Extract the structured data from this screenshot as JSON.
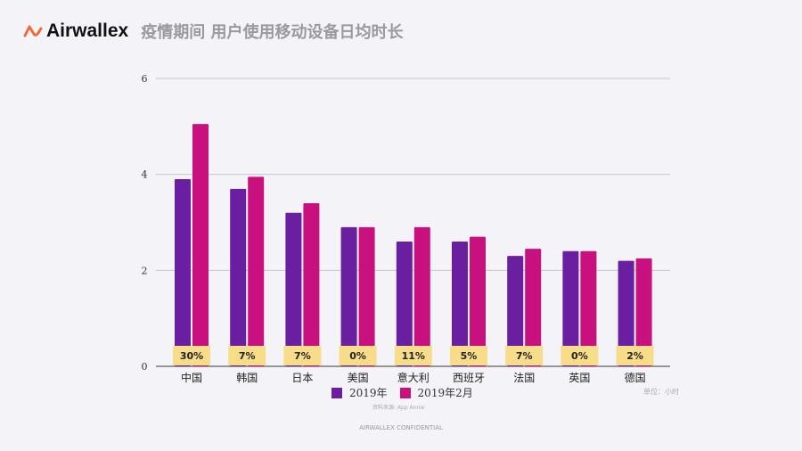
{
  "header": {
    "brand": "Airwallex",
    "title": "疫情期间 用户使用移动设备日均时长"
  },
  "colors": {
    "series_2019": "#6a1fa0",
    "series_2019_feb": "#c8117f",
    "pct_box": "#f7dc8a",
    "brand": "#f06a3c"
  },
  "chart_data": {
    "type": "bar",
    "title": "疫情期间 用户使用移动设备日均时长",
    "categories": [
      "中国",
      "韩国",
      "日本",
      "美国",
      "意大利",
      "西班牙",
      "法国",
      "英国",
      "德国"
    ],
    "series": [
      {
        "name": "2019年",
        "values": [
          3.9,
          3.7,
          3.2,
          2.9,
          2.6,
          2.6,
          2.3,
          2.4,
          2.2
        ]
      },
      {
        "name": "2019年2月",
        "values": [
          5.05,
          3.95,
          3.4,
          2.9,
          2.9,
          2.7,
          2.45,
          2.4,
          2.25
        ]
      }
    ],
    "change_labels": [
      "30%",
      "7%",
      "7%",
      "0%",
      "11%",
      "5%",
      "7%",
      "0%",
      "2%"
    ],
    "ylim": [
      0,
      6
    ],
    "yticks": [
      "0",
      "2",
      "4",
      "6"
    ],
    "grid": true,
    "legend": "bottom",
    "unit_note": "单位：小时",
    "source": "资料来源: App Annie"
  },
  "footer": "AIRWALLEX CONFIDENTIAL"
}
